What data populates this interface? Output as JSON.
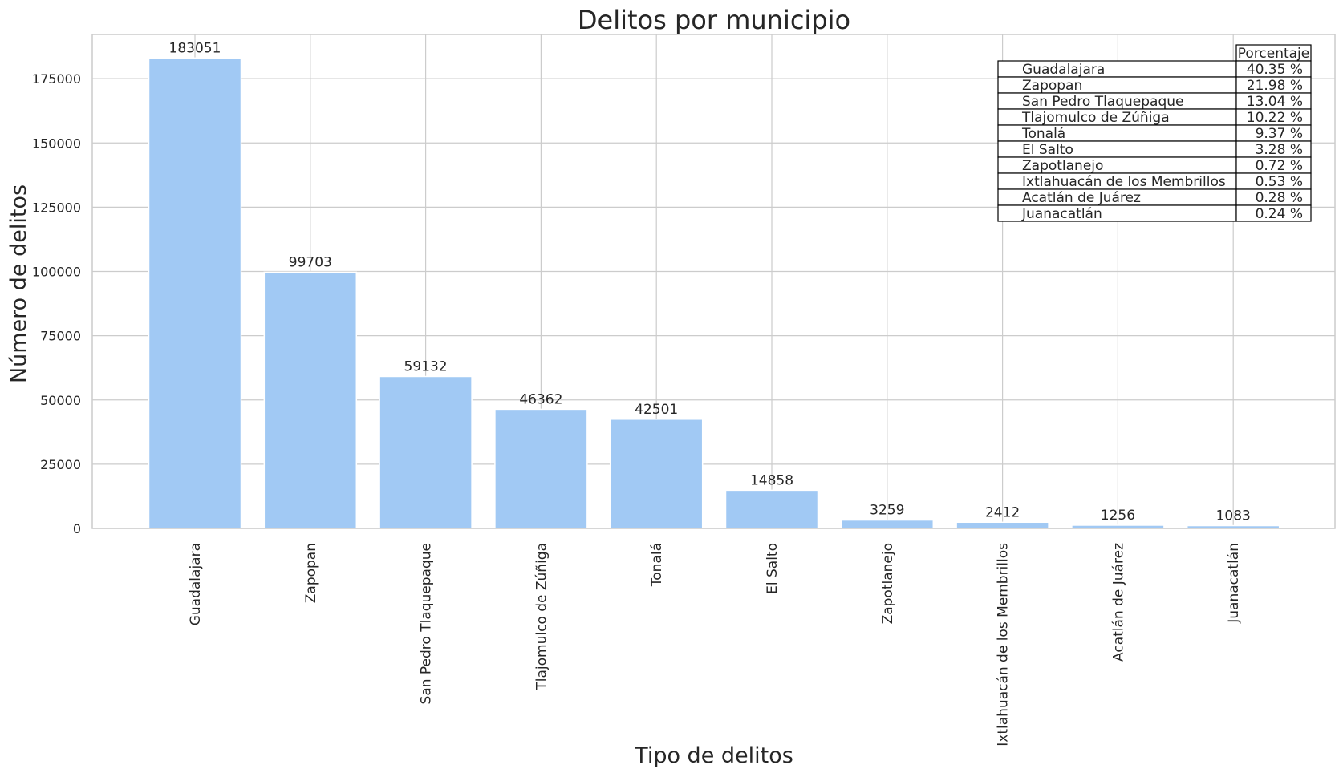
{
  "chart_data": {
    "type": "bar",
    "title": "Delitos por municipio",
    "xlabel": "Tipo de delitos",
    "ylabel": "Número de delitos",
    "categories": [
      "Guadalajara",
      "Zapopan",
      "San Pedro Tlaquepaque",
      "Tlajomulco de Zúñiga",
      "Tonalá",
      "El Salto",
      "Zapotlanejo",
      "Ixtlahuacán de los Membrillos",
      "Acatlán de Juárez",
      "Juanacatlán"
    ],
    "values": [
      183051,
      99703,
      59132,
      46362,
      42501,
      14858,
      3259,
      2412,
      1256,
      1083
    ],
    "ylim": [
      0,
      192200
    ],
    "yticks": [
      0,
      25000,
      50000,
      75000,
      100000,
      125000,
      150000,
      175000
    ],
    "grid": true,
    "bar_color": "#a1c9f4",
    "table": {
      "header": "Porcentaje",
      "rows": [
        {
          "label": "Guadalajara",
          "value": "40.35 %"
        },
        {
          "label": "Zapopan",
          "value": "21.98 %"
        },
        {
          "label": "San Pedro Tlaquepaque",
          "value": "13.04 %"
        },
        {
          "label": "Tlajomulco de Zúñiga",
          "value": "10.22 %"
        },
        {
          "label": "Tonalá",
          "value": "9.37 %"
        },
        {
          "label": "El Salto",
          "value": "3.28 %"
        },
        {
          "label": "Zapotlanejo",
          "value": "0.72 %"
        },
        {
          "label": "Ixtlahuacán de los Membrillos",
          "value": "0.53 %"
        },
        {
          "label": "Acatlán de Juárez",
          "value": "0.28 %"
        },
        {
          "label": "Juanacatlán",
          "value": "0.24 %"
        }
      ]
    }
  }
}
